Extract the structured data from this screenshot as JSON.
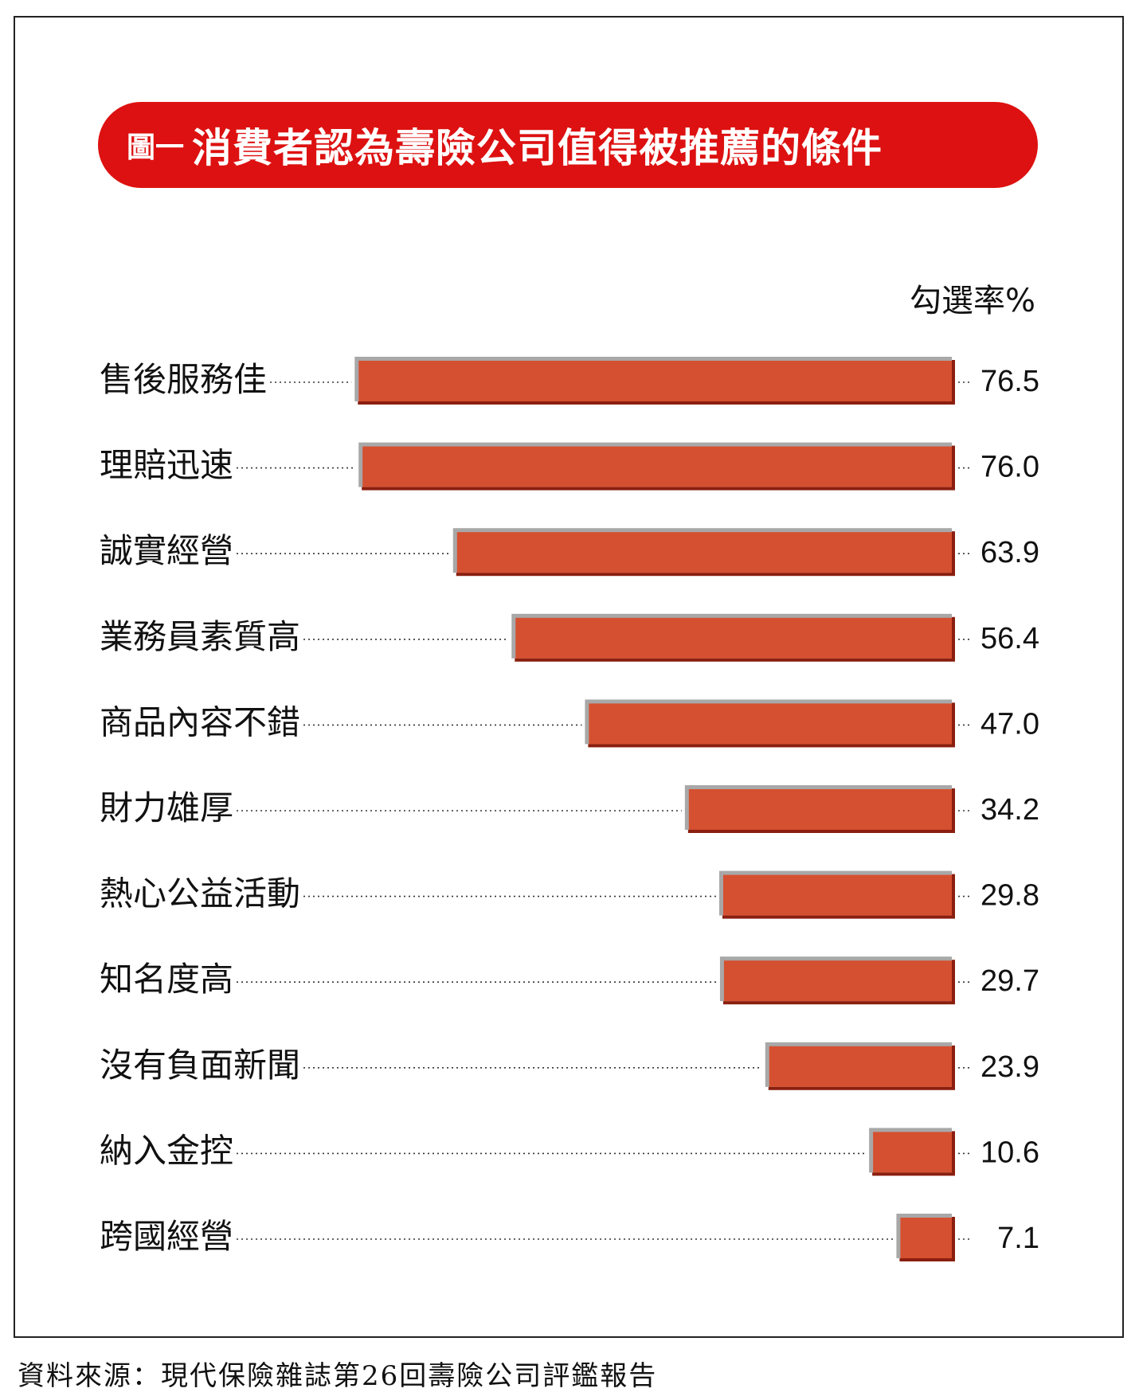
{
  "title": {
    "figure_label": "圖一",
    "text": "消費者認為壽險公司值得被推薦的條件"
  },
  "unit_label": "勾選率%",
  "source": "資料來源：現代保險雜誌第26回壽險公司評鑑報告",
  "colors": {
    "banner": "#dd1111",
    "bar": "#d55030",
    "bar_shadow": "#8a1f10",
    "bar_highlight": "#a8a8a8"
  },
  "chart_data": {
    "type": "bar",
    "orientation": "horizontal",
    "categories": [
      "售後服務佳",
      "理賠迅速",
      "誠實經營",
      "業務員素質高",
      "商品內容不錯",
      "財力雄厚",
      "熱心公益活動",
      "知名度高",
      "沒有負面新聞",
      "納入金控",
      "跨國經營"
    ],
    "values": [
      76.5,
      76.0,
      63.9,
      56.4,
      47.0,
      34.2,
      29.8,
      29.7,
      23.9,
      10.6,
      7.1
    ],
    "value_labels": [
      "76.5",
      "76.0",
      "63.9",
      "56.4",
      "47.0",
      "34.2",
      "29.8",
      "29.7",
      "23.9",
      "10.6",
      "7.1"
    ],
    "xlim": [
      0,
      100
    ],
    "grid": false,
    "legend": false
  }
}
